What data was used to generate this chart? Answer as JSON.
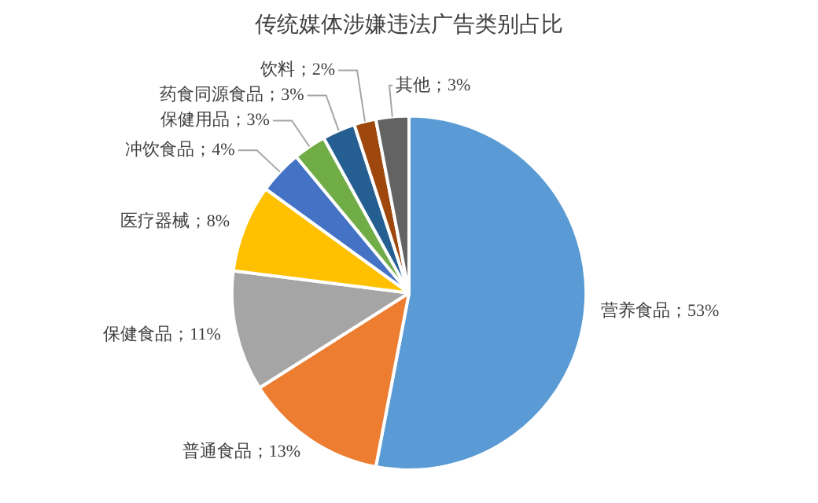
{
  "chart_data": {
    "type": "pie",
    "title": "传统媒体涉嫌违法广告类别占比",
    "categories": [
      "营养食品",
      "普通食品",
      "保健食品",
      "医疗器械",
      "冲饮食品",
      "保健用品",
      "药食同源食品",
      "饮料",
      "其他"
    ],
    "values": [
      53,
      13,
      11,
      8,
      4,
      3,
      3,
      2,
      3
    ],
    "colors": [
      "#5b9bd5",
      "#ed7d31",
      "#a5a5a5",
      "#ffc000",
      "#4472c4",
      "#70ad47",
      "#255e91",
      "#9e480e",
      "#636363"
    ],
    "value_labels": [
      "；53%",
      "；13%",
      "；11%",
      "；8%",
      "；4%",
      "；3%",
      "；3%",
      "；2%",
      "；3%"
    ],
    "legend": false
  }
}
